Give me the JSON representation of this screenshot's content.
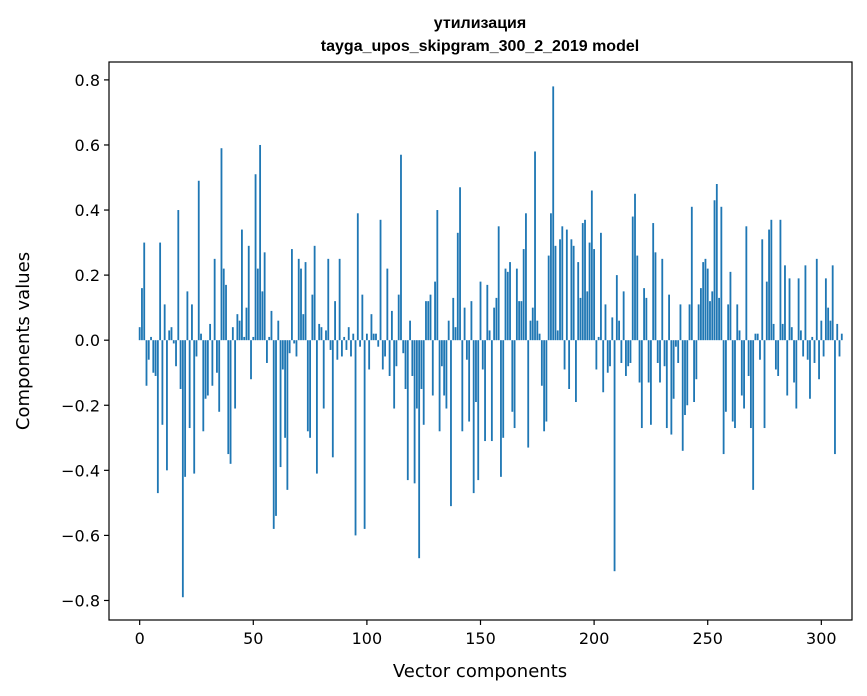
{
  "chart_data": {
    "type": "bar",
    "title_line1": "утилизация",
    "title_line2": "tayga_upos_skipgram_300_2_2019 model",
    "xlabel": "Vector components",
    "ylabel": "Components values",
    "xlim": [
      -13.5,
      313.5
    ],
    "ylim": [
      -0.86,
      0.855
    ],
    "xticks": [
      0,
      50,
      100,
      150,
      200,
      250,
      300
    ],
    "xtick_labels": [
      "0",
      "50",
      "100",
      "150",
      "200",
      "250",
      "300"
    ],
    "yticks": [
      -0.8,
      -0.6,
      -0.4,
      -0.2,
      0.0,
      0.2,
      0.4,
      0.6,
      0.8
    ],
    "ytick_labels": [
      "−0.8",
      "−0.6",
      "−0.4",
      "−0.2",
      "0.0",
      "0.2",
      "0.4",
      "0.6",
      "0.8"
    ],
    "bar_color": "#1f77b4",
    "grid": false,
    "values": [
      0.04,
      0.16,
      0.3,
      -0.14,
      -0.06,
      0.01,
      -0.1,
      -0.11,
      -0.47,
      0.3,
      -0.26,
      0.11,
      -0.4,
      0.03,
      0.04,
      -0.01,
      -0.08,
      0.4,
      -0.15,
      -0.79,
      -0.42,
      0.15,
      -0.27,
      0.11,
      -0.41,
      -0.05,
      0.49,
      0.02,
      -0.28,
      -0.18,
      -0.17,
      0.05,
      -0.14,
      0.25,
      -0.1,
      -0.22,
      0.59,
      0.22,
      0.17,
      -0.35,
      -0.38,
      0.04,
      -0.21,
      0.08,
      0.06,
      0.34,
      0.01,
      0.1,
      0.29,
      -0.12,
      0.01,
      0.51,
      0.22,
      0.6,
      0.15,
      0.27,
      -0.07,
      0.01,
      0.09,
      -0.58,
      -0.54,
      0.06,
      -0.39,
      -0.09,
      -0.3,
      -0.46,
      -0.04,
      0.28,
      -0.01,
      -0.05,
      0.25,
      0.22,
      0.08,
      0.24,
      -0.28,
      -0.3,
      0.14,
      0.29,
      -0.41,
      0.05,
      0.04,
      -0.21,
      0.03,
      0.25,
      -0.03,
      -0.36,
      0.12,
      -0.06,
      0.25,
      -0.05,
      0.01,
      -0.03,
      0.04,
      -0.05,
      0.02,
      -0.6,
      0.39,
      -0.02,
      0.14,
      -0.58,
      0.02,
      -0.09,
      0.08,
      0.02,
      0.02,
      -0.02,
      0.37,
      -0.09,
      -0.05,
      0.22,
      -0.11,
      0.09,
      -0.21,
      -0.08,
      0.14,
      0.57,
      -0.04,
      -0.15,
      -0.43,
      0.06,
      -0.11,
      -0.44,
      -0.21,
      -0.67,
      -0.15,
      -0.26,
      0.12,
      0.12,
      0.14,
      -0.17,
      0.18,
      0.4,
      -0.28,
      -0.08,
      -0.17,
      -0.21,
      0.06,
      -0.51,
      0.13,
      0.04,
      0.33,
      0.47,
      -0.28,
      0.1,
      -0.06,
      -0.25,
      0.12,
      -0.47,
      -0.19,
      -0.43,
      0.18,
      -0.09,
      -0.31,
      0.17,
      0.03,
      -0.31,
      0.1,
      0.13,
      0.35,
      -0.42,
      -0.3,
      0.22,
      0.21,
      0.24,
      -0.22,
      -0.27,
      0.22,
      0.12,
      0.12,
      0.28,
      0.39,
      -0.33,
      0.06,
      0.1,
      0.58,
      0.06,
      0.02,
      -0.14,
      -0.28,
      -0.25,
      0.26,
      0.39,
      0.78,
      0.29,
      0.03,
      0.31,
      0.35,
      -0.09,
      0.34,
      -0.15,
      0.31,
      0.29,
      -0.19,
      0.24,
      0.13,
      0.36,
      0.37,
      0.15,
      0.3,
      0.46,
      0.28,
      -0.09,
      0.01,
      0.33,
      -0.16,
      0.11,
      -0.1,
      -0.08,
      0.07,
      -0.71,
      0.2,
      0.06,
      -0.07,
      0.15,
      -0.11,
      -0.08,
      -0.07,
      0.38,
      0.45,
      0.26,
      -0.13,
      -0.27,
      0.16,
      0.13,
      -0.13,
      -0.26,
      0.36,
      0.27,
      -0.07,
      -0.13,
      0.25,
      -0.08,
      -0.27,
      0.14,
      -0.29,
      -0.18,
      -0.02,
      -0.07,
      0.11,
      -0.34,
      -0.23,
      -0.2,
      0.11,
      0.41,
      -0.19,
      -0.12,
      0.11,
      0.16,
      0.24,
      0.25,
      0.22,
      0.12,
      0.15,
      0.43,
      0.48,
      0.13,
      0.41,
      -0.35,
      -0.22,
      0.11,
      0.21,
      -0.25,
      -0.27,
      0.11,
      0.03,
      -0.17,
      -0.21,
      0.35,
      -0.11,
      -0.27,
      -0.46,
      0.02,
      0.02,
      -0.06,
      0.31,
      -0.27,
      0.18,
      0.34,
      0.37,
      0.05,
      -0.09,
      -0.11,
      0.37,
      0.05,
      0.23,
      -0.17,
      0.19,
      0.04,
      -0.13,
      -0.21,
      0.19,
      0.03,
      -0.05,
      0.23,
      -0.06,
      -0.18,
      0.01,
      -0.07,
      0.25,
      -0.12,
      0.06,
      -0.05,
      0.19,
      0.1,
      0.06,
      0.23,
      -0.35,
      0.05,
      -0.05,
      0.02
    ]
  }
}
